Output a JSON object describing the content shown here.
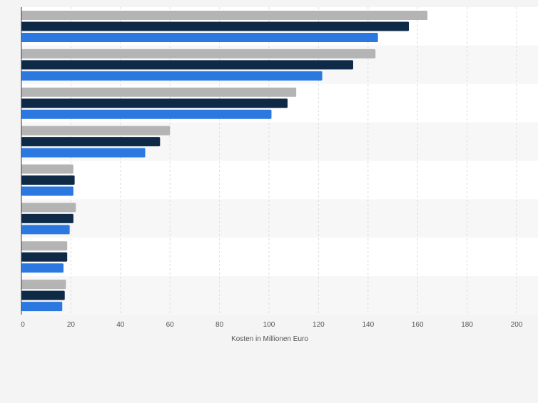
{
  "chart_data": {
    "type": "bar",
    "orientation": "horizontal",
    "categories": [
      "",
      "",
      "",
      "",
      "",
      "",
      "",
      ""
    ],
    "series": [
      {
        "color": "#b4b4b4",
        "values": [
          164,
          143,
          111,
          60,
          21,
          22,
          18.5,
          18
        ]
      },
      {
        "color": "#0e2a47",
        "values": [
          156.5,
          134,
          107.5,
          56,
          21.5,
          21,
          18.5,
          17.5
        ]
      },
      {
        "color": "#2a78e0",
        "values": [
          144,
          121.5,
          101,
          50,
          21,
          19.5,
          17,
          16.5
        ]
      }
    ],
    "xlim": [
      0,
      200
    ],
    "xticks": [
      0,
      20,
      40,
      60,
      80,
      100,
      120,
      140,
      160,
      180,
      200
    ],
    "xlabel": "Kosten in Millionen Euro",
    "grid": true,
    "legend": "none"
  }
}
